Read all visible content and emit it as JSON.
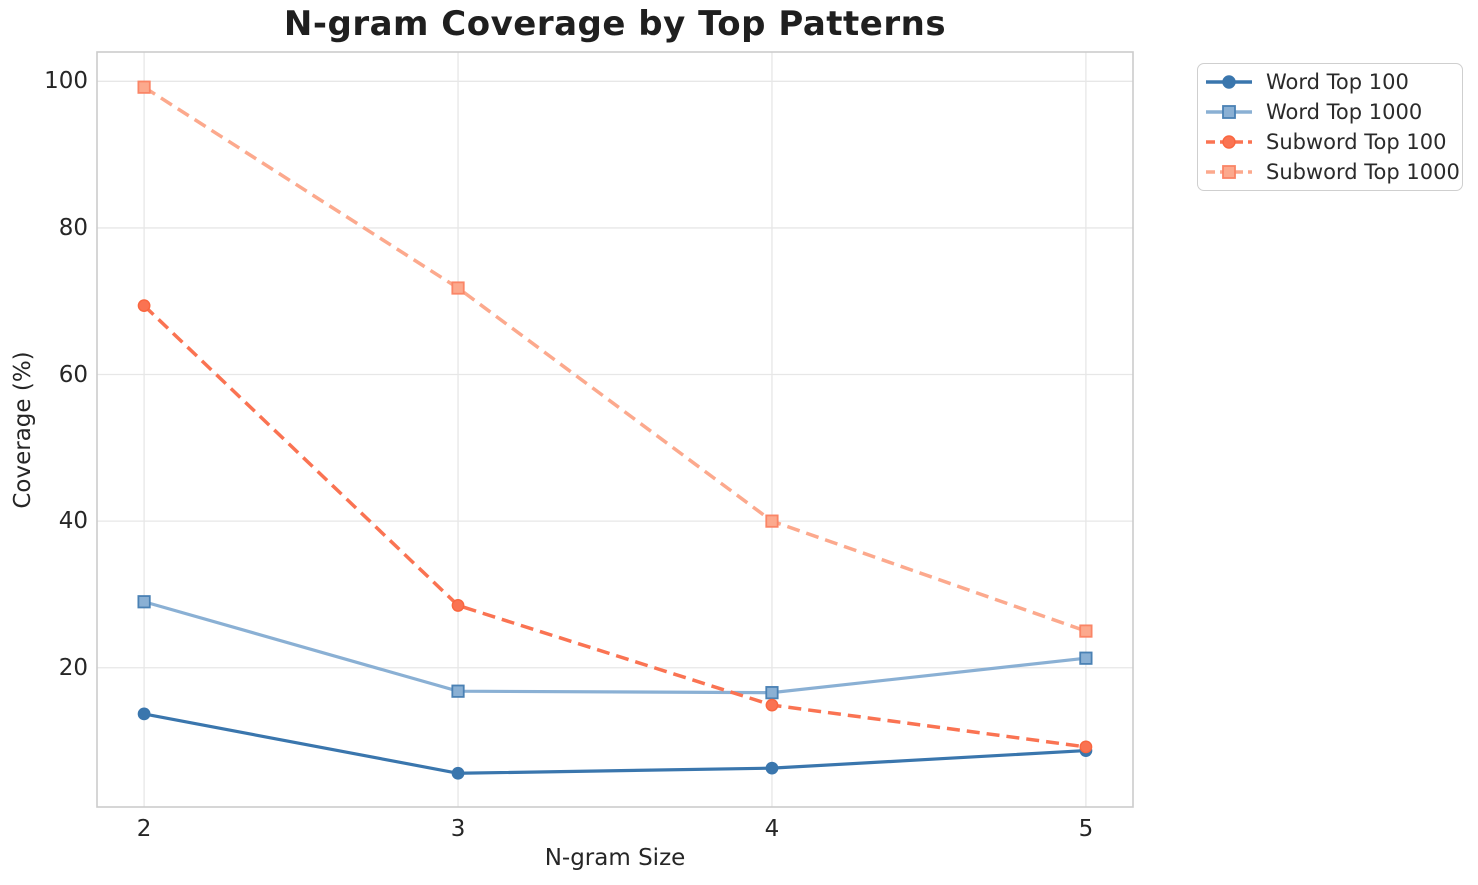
{
  "figure": {
    "background": "#ffffff",
    "grid_color": "#e7e7e7",
    "spine_color": "#cccccc",
    "text_color": "#262626",
    "title_color": "#1f1f1f"
  },
  "chart_data": {
    "type": "line",
    "title": "N-gram Coverage by Top Patterns",
    "xlabel": "N-gram Size",
    "ylabel": "Coverage (%)",
    "x": [
      2,
      3,
      4,
      5
    ],
    "xtick_labels": [
      "2",
      "3",
      "4",
      "5"
    ],
    "yticks": [
      20,
      40,
      60,
      80,
      100
    ],
    "ytick_labels": [
      "20",
      "40",
      "60",
      "80",
      "100"
    ],
    "xlim": [
      1.85,
      5.15
    ],
    "ylim": [
      1.0,
      104.0
    ],
    "grid": true,
    "legend_position": "outside-upper-right",
    "series": [
      {
        "name": "Word Top 100",
        "values": [
          13.7,
          5.6,
          6.3,
          8.7
        ],
        "color": "#3a76ad",
        "marker_edge": "#3a76ad",
        "line_style": "solid",
        "marker": "circle"
      },
      {
        "name": "Word Top 1000",
        "values": [
          29.0,
          16.8,
          16.6,
          21.3
        ],
        "color": "#8ab0d4",
        "marker_edge": "#4a81b4",
        "line_style": "solid",
        "marker": "square"
      },
      {
        "name": "Subword Top 100",
        "values": [
          69.4,
          28.5,
          14.9,
          9.2
        ],
        "color": "#fa7352",
        "marker_edge": "#f9663f",
        "line_style": "dashed",
        "marker": "circle"
      },
      {
        "name": "Subword Top 1000",
        "values": [
          99.2,
          71.8,
          40.0,
          25.0
        ],
        "color": "#fca98d",
        "marker_edge": "#fa8566",
        "line_style": "dashed",
        "marker": "square"
      }
    ]
  }
}
